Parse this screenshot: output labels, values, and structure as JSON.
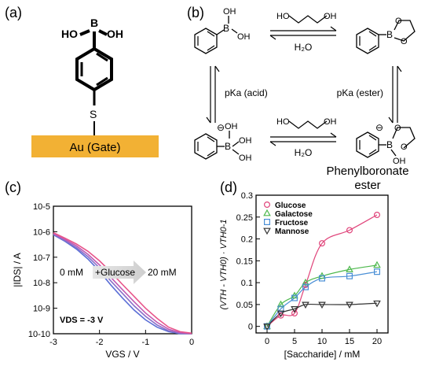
{
  "panels": {
    "a": {
      "label": "(a)",
      "oh_left": "HO",
      "oh_right": "OH",
      "boron": "B",
      "sulfur": "S",
      "gate_label": "Au (Gate)",
      "gate_color": "#f2b134"
    },
    "b": {
      "label": "(b)",
      "oh1": "OH",
      "oh2": "OH",
      "b1": "B",
      "diol_ho": "HO",
      "diol_oh": "OH",
      "water_top": "H₂O",
      "b2": "B",
      "o1": "O",
      "o2": "O",
      "pka_acid": "pKa (acid)",
      "pka_ester": "pKa (ester)",
      "minus1": "⊖",
      "b3": "B",
      "oh3": "OH",
      "oh4": "OH",
      "oh5": "OH",
      "diol2_ho": "HO",
      "diol2_oh": "OH",
      "water_bottom": "H₂O",
      "minus2": "⊖",
      "b4": "B",
      "o3": "O",
      "o4": "O",
      "oh6": "OH",
      "ester_name_1": "Phenylboronate",
      "ester_name_2": "ester"
    }
  },
  "chart_data": [
    {
      "panel": "(c)",
      "type": "line",
      "xlabel": "VGS / V",
      "ylabel": "|IDS| / A",
      "y_scale": "log",
      "xlim": [
        -3,
        0
      ],
      "ylim": [
        1e-10,
        1e-05
      ],
      "x_ticks": [
        "-3",
        "-2",
        "-1",
        "0"
      ],
      "y_ticks": [
        "10-10",
        "10-9",
        "10-8",
        "10-7",
        "10-6",
        "10-5"
      ],
      "annotations": {
        "left": "0 mM",
        "arrow": "+Glucose",
        "right": "20 mM",
        "vds": "VDS = -3 V"
      },
      "colors": [
        "#5b6fd6",
        "#8a6fc8",
        "#c05ab4",
        "#e8558a"
      ],
      "x": [
        -3.0,
        -2.75,
        -2.5,
        -2.25,
        -2.0,
        -1.75,
        -1.5,
        -1.25,
        -1.0,
        -0.75,
        -0.5,
        -0.25,
        0.0
      ],
      "series": [
        {
          "values": [
            7.6e-07,
            4.2e-07,
            2.1e-07,
            8.5e-08,
            2.8e-08,
            8e-09,
            2.5e-09,
            8.5e-10,
            3.5e-10,
            1.8e-10,
            1.2e-10,
            1e-10,
            1e-10
          ]
        },
        {
          "values": [
            8e-07,
            4.5e-07,
            2.4e-07,
            1.05e-07,
            3.8e-08,
            1.15e-08,
            3.8e-09,
            1.25e-09,
            4.8e-10,
            2.2e-10,
            1.3e-10,
            1.05e-10,
            1e-10
          ]
        },
        {
          "values": [
            8.5e-07,
            5e-07,
            2.8e-07,
            1.3e-07,
            5e-08,
            1.6e-08,
            5.3e-09,
            1.8e-09,
            6.5e-10,
            2.8e-10,
            1.5e-10,
            1.1e-10,
            1e-10
          ]
        },
        {
          "values": [
            9.2e-07,
            5.6e-07,
            3.3e-07,
            1.7e-07,
            7.2e-08,
            2.6e-08,
            8.5e-09,
            2.9e-09,
            1e-09,
            4e-10,
            1.8e-10,
            1.2e-10,
            1.05e-10
          ]
        }
      ]
    },
    {
      "panel": "(d)",
      "type": "scatter",
      "xlabel": "[Saccharide] / mM",
      "ylabel": "(VTH - VTH0) · VTH0-1",
      "xlim": [
        -2,
        22
      ],
      "ylim": [
        -0.015,
        0.3
      ],
      "x_ticks": [
        "0",
        "5",
        "10",
        "15",
        "20"
      ],
      "y_ticks": [
        "0",
        "0.05",
        "0.1",
        "0.15",
        "0.2",
        "0.25",
        "0.3"
      ],
      "legend_position": "top-left",
      "x": [
        0,
        2.5,
        5,
        7,
        10,
        15,
        20
      ],
      "series": [
        {
          "name": "Glucose",
          "marker": "circle",
          "color": "#e0457b",
          "values": [
            0.0,
            0.025,
            0.03,
            0.095,
            0.19,
            0.22,
            0.255
          ]
        },
        {
          "name": "Galactose",
          "marker": "triangle-up",
          "color": "#4cb84c",
          "values": [
            0.0,
            0.05,
            0.07,
            0.1,
            0.115,
            0.13,
            0.14
          ]
        },
        {
          "name": "Fructose",
          "marker": "square",
          "color": "#4a8fd6",
          "values": [
            0.0,
            0.04,
            0.065,
            0.09,
            0.11,
            0.115,
            0.125
          ]
        },
        {
          "name": "Mannose",
          "marker": "triangle-down",
          "color": "#333333",
          "values": [
            0.0,
            0.03,
            0.04,
            0.05,
            0.05,
            0.05,
            0.053
          ]
        }
      ]
    }
  ]
}
